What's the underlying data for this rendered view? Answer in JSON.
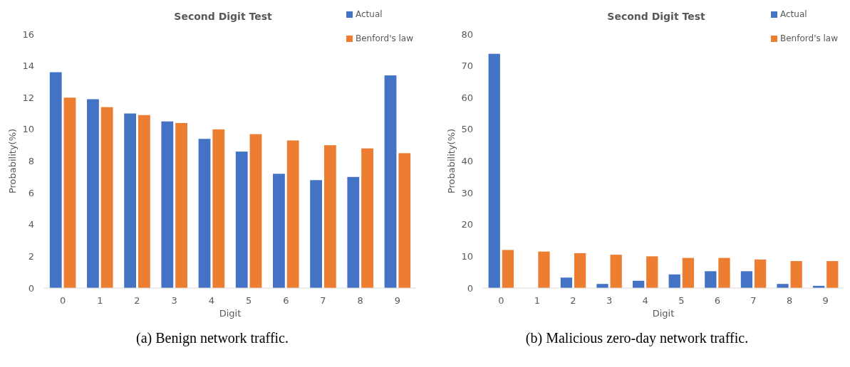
{
  "chart_data": [
    {
      "type": "bar",
      "title": "Second Digit Test",
      "xlabel": "Digit",
      "ylabel": "Probability(%)",
      "categories": [
        "0",
        "1",
        "2",
        "3",
        "4",
        "5",
        "6",
        "7",
        "8",
        "9"
      ],
      "series": [
        {
          "name": "Actual",
          "color": "#4472c4",
          "values": [
            13.6,
            11.9,
            11.0,
            10.5,
            9.4,
            8.6,
            7.2,
            6.8,
            7.0,
            13.4
          ]
        },
        {
          "name": "Benford's law",
          "color": "#ed7d31",
          "values": [
            12.0,
            11.4,
            10.9,
            10.4,
            10.0,
            9.7,
            9.3,
            9.0,
            8.8,
            8.5
          ]
        }
      ],
      "ylim": [
        0,
        16
      ],
      "yticks": [
        0,
        2,
        4,
        6,
        8,
        10,
        12,
        14,
        16
      ],
      "grid": false,
      "legend": "top right",
      "annotations": [
        "(a) Benign network traffic."
      ]
    },
    {
      "type": "bar",
      "title": "Second Digit Test",
      "xlabel": "Digit",
      "ylabel": "Probability(%)",
      "categories": [
        "0",
        "1",
        "2",
        "3",
        "4",
        "5",
        "6",
        "7",
        "8",
        "9"
      ],
      "series": [
        {
          "name": "Actual",
          "color": "#4472c4",
          "values": [
            73.8,
            0,
            3.3,
            1.3,
            2.3,
            4.3,
            5.3,
            5.3,
            1.3,
            0.7
          ]
        },
        {
          "name": "Benford's law",
          "color": "#ed7d31",
          "values": [
            12,
            11.5,
            11,
            10.5,
            10,
            9.5,
            9.5,
            9,
            8.5,
            8.5
          ]
        }
      ],
      "ylim": [
        0,
        80
      ],
      "yticks": [
        0,
        10,
        20,
        30,
        40,
        50,
        60,
        70,
        80
      ],
      "grid": false,
      "legend": "top right",
      "annotations": [
        "(b) Malicious zero-day network traffic."
      ]
    }
  ]
}
